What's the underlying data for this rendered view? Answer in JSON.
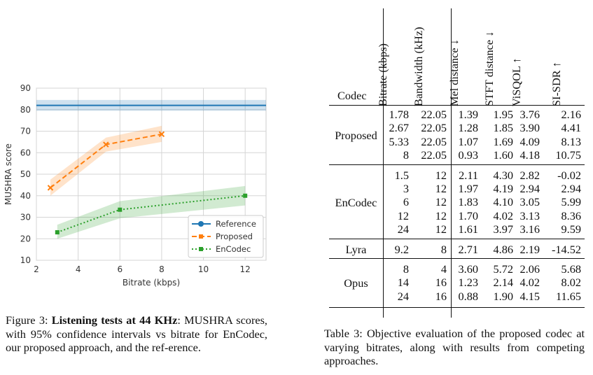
{
  "figure": {
    "caption_label": "Figure 3:",
    "caption_bold": "Listening tests at 44 KHz",
    "caption_text": ": MUSHRA scores, with 95% confidence intervals vs bitrate for EnCodec, our proposed approach, and the ref-erence."
  },
  "chart_data": {
    "type": "line",
    "xlabel": "Bitrate (kbps)",
    "ylabel": "MUSHRA score",
    "xlim": [
      2,
      13
    ],
    "ylim": [
      10,
      90
    ],
    "xticks": [
      2,
      4,
      6,
      8,
      10,
      12
    ],
    "yticks": [
      10,
      20,
      30,
      40,
      50,
      60,
      70,
      80,
      90
    ],
    "grid": true,
    "legend_position": "bottom-right",
    "series": [
      {
        "name": "Reference",
        "color": "#1f77b4",
        "style": "solid",
        "marker": "circle",
        "x": [
          2,
          13
        ],
        "y": [
          82,
          82
        ],
        "ci_low": [
          79.5,
          79.5
        ],
        "ci_high": [
          84.5,
          84.5
        ]
      },
      {
        "name": "Proposed",
        "color": "#ff7f0e",
        "style": "dashed",
        "marker": "x",
        "x": [
          2.67,
          5.33,
          8
        ],
        "y": [
          43.7,
          63.8,
          68.6
        ],
        "ci_low": [
          40,
          60.5,
          65
        ],
        "ci_high": [
          47.5,
          67,
          72.5
        ]
      },
      {
        "name": "EnCodec",
        "color": "#2ca02c",
        "style": "dotted",
        "marker": "square",
        "x": [
          3,
          6,
          12
        ],
        "y": [
          23,
          33.5,
          40
        ],
        "ci_low": [
          20,
          29.5,
          35.5
        ],
        "ci_high": [
          26.5,
          37.5,
          44.5
        ]
      }
    ]
  },
  "table": {
    "caption": "Table 3:  Objective evaluation of the proposed codec at varying bitrates, along with results from competing approaches.",
    "headers": [
      "Codec",
      "Bitrate (kbps)",
      "Bandwidth (kHz)",
      "Mel distance ↓",
      "STFT distance ↓",
      "ViSQOL ↑",
      "SI-SDR ↑"
    ],
    "groups": [
      {
        "codec": "Proposed",
        "rows": [
          [
            "1.78",
            "22.05",
            "1.39",
            "1.95",
            "3.76",
            "2.16"
          ],
          [
            "2.67",
            "22.05",
            "1.28",
            "1.85",
            "3.90",
            "4.41"
          ],
          [
            "5.33",
            "22.05",
            "1.07",
            "1.69",
            "4.09",
            "8.13"
          ],
          [
            "8",
            "22.05",
            "0.93",
            "1.60",
            "4.18",
            "10.75"
          ]
        ]
      },
      {
        "codec": "EnCodec",
        "rows": [
          [
            "1.5",
            "12",
            "2.11",
            "4.30",
            "2.82",
            "-0.02"
          ],
          [
            "3",
            "12",
            "1.97",
            "4.19",
            "2.94",
            "2.94"
          ],
          [
            "6",
            "12",
            "1.83",
            "4.10",
            "3.05",
            "5.99"
          ],
          [
            "12",
            "12",
            "1.70",
            "4.02",
            "3.13",
            "8.36"
          ],
          [
            "24",
            "12",
            "1.61",
            "3.97",
            "3.16",
            "9.59"
          ]
        ]
      },
      {
        "codec": "Lyra",
        "rows": [
          [
            "9.2",
            "8",
            "2.71",
            "4.86",
            "2.19",
            "-14.52"
          ]
        ]
      },
      {
        "codec": "Opus",
        "rows": [
          [
            "8",
            "4",
            "3.60",
            "5.72",
            "2.06",
            "5.68"
          ],
          [
            "14",
            "16",
            "1.23",
            "2.14",
            "4.02",
            "8.02"
          ],
          [
            "24",
            "16",
            "0.88",
            "1.90",
            "4.15",
            "11.65"
          ]
        ]
      }
    ]
  }
}
